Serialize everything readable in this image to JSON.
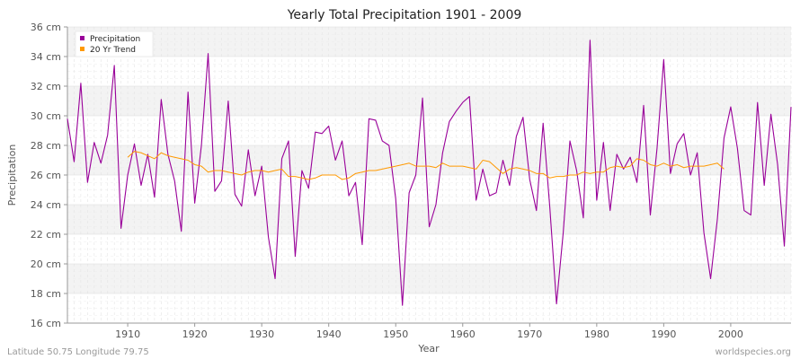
{
  "chart_data": {
    "type": "line",
    "title": "Yearly Total Precipitation 1901 - 2009",
    "xlabel": "Year",
    "ylabel": "Precipitation",
    "xlim": [
      1901,
      2009
    ],
    "ylim": [
      16,
      36
    ],
    "y_unit": "cm",
    "x_ticks": [
      1910,
      1920,
      1930,
      1940,
      1950,
      1960,
      1970,
      1980,
      1990,
      2000
    ],
    "y_ticks": [
      16,
      18,
      20,
      22,
      24,
      26,
      28,
      30,
      32,
      34,
      36
    ],
    "y_tick_labels": [
      "16 cm",
      "18 cm",
      "20 cm",
      "22 cm",
      "24 cm",
      "26 cm",
      "28 cm",
      "30 cm",
      "32 cm",
      "34 cm",
      "36 cm"
    ],
    "grid": true,
    "legend_position": "top-left",
    "series": [
      {
        "name": "Precipitation",
        "color": "#990099",
        "x": [
          1901,
          1902,
          1903,
          1904,
          1905,
          1906,
          1907,
          1908,
          1909,
          1910,
          1911,
          1912,
          1913,
          1914,
          1915,
          1916,
          1917,
          1918,
          1919,
          1920,
          1921,
          1922,
          1923,
          1924,
          1925,
          1926,
          1927,
          1928,
          1929,
          1930,
          1931,
          1932,
          1933,
          1934,
          1935,
          1936,
          1937,
          1938,
          1939,
          1940,
          1941,
          1942,
          1943,
          1944,
          1945,
          1946,
          1947,
          1948,
          1949,
          1950,
          1951,
          1952,
          1953,
          1954,
          1955,
          1956,
          1957,
          1958,
          1959,
          1960,
          1961,
          1962,
          1963,
          1964,
          1965,
          1966,
          1967,
          1968,
          1969,
          1970,
          1971,
          1972,
          1973,
          1974,
          1975,
          1976,
          1977,
          1978,
          1979,
          1980,
          1981,
          1982,
          1983,
          1984,
          1985,
          1986,
          1987,
          1988,
          1989,
          1990,
          1991,
          1992,
          1993,
          1994,
          1995,
          1996,
          1997,
          1998,
          1999,
          2000,
          2001,
          2002,
          2003,
          2004,
          2005,
          2006,
          2007,
          2008,
          2009
        ],
        "values": [
          29.8,
          26.9,
          32.2,
          25.5,
          28.2,
          26.8,
          28.7,
          33.4,
          22.4,
          26.0,
          28.1,
          25.3,
          27.4,
          24.5,
          31.1,
          27.4,
          25.6,
          22.2,
          31.6,
          24.1,
          28.0,
          34.2,
          24.9,
          25.6,
          31.0,
          24.7,
          23.9,
          27.7,
          24.6,
          26.6,
          21.8,
          19.0,
          27.1,
          28.3,
          20.5,
          26.3,
          25.1,
          28.9,
          28.8,
          29.3,
          27.0,
          28.3,
          24.6,
          25.5,
          21.3,
          29.8,
          29.7,
          28.3,
          28.0,
          24.4,
          17.2,
          24.8,
          26.0,
          31.2,
          22.5,
          24.0,
          27.5,
          29.6,
          30.3,
          30.9,
          31.3,
          24.3,
          26.4,
          24.6,
          24.8,
          27.0,
          25.3,
          28.6,
          29.9,
          25.7,
          23.6,
          29.5,
          23.8,
          17.3,
          22.1,
          28.3,
          26.3,
          23.1,
          35.1,
          24.3,
          28.2,
          23.6,
          27.4,
          26.4,
          27.2,
          25.5,
          30.7,
          23.3,
          27.8,
          33.8,
          26.1,
          28.1,
          28.8,
          26.0,
          27.5,
          22.1,
          19.0,
          23.0,
          28.5,
          30.6,
          27.8,
          23.6,
          23.3,
          30.9,
          25.3,
          30.1,
          26.7,
          21.2,
          30.6
        ]
      },
      {
        "name": "20 Yr Trend",
        "color": "#ff9900",
        "x": [
          1910,
          1911,
          1912,
          1913,
          1914,
          1915,
          1916,
          1917,
          1918,
          1919,
          1920,
          1921,
          1922,
          1923,
          1924,
          1925,
          1926,
          1927,
          1928,
          1929,
          1930,
          1931,
          1932,
          1933,
          1934,
          1935,
          1936,
          1937,
          1938,
          1939,
          1940,
          1941,
          1942,
          1943,
          1944,
          1945,
          1946,
          1947,
          1948,
          1949,
          1950,
          1951,
          1952,
          1953,
          1954,
          1955,
          1956,
          1957,
          1958,
          1959,
          1960,
          1961,
          1962,
          1963,
          1964,
          1965,
          1966,
          1967,
          1968,
          1969,
          1970,
          1971,
          1972,
          1973,
          1974,
          1975,
          1976,
          1977,
          1978,
          1979,
          1980,
          1981,
          1982,
          1983,
          1984,
          1985,
          1986,
          1987,
          1988,
          1989,
          1990,
          1991,
          1992,
          1993,
          1994,
          1995,
          1996,
          1997,
          1998,
          1999
        ],
        "values": [
          27.2,
          27.6,
          27.5,
          27.3,
          27.1,
          27.5,
          27.3,
          27.2,
          27.1,
          27.0,
          26.7,
          26.6,
          26.2,
          26.3,
          26.3,
          26.2,
          26.1,
          26.0,
          26.2,
          26.3,
          26.3,
          26.2,
          26.3,
          26.4,
          25.9,
          25.9,
          25.8,
          25.7,
          25.8,
          26.0,
          26.0,
          26.0,
          25.7,
          25.8,
          26.1,
          26.2,
          26.3,
          26.3,
          26.4,
          26.5,
          26.6,
          26.7,
          26.8,
          26.6,
          26.6,
          26.6,
          26.5,
          26.8,
          26.6,
          26.6,
          26.6,
          26.5,
          26.4,
          27.0,
          26.9,
          26.5,
          26.1,
          26.4,
          26.5,
          26.4,
          26.3,
          26.1,
          26.1,
          25.8,
          25.9,
          25.9,
          26.0,
          26.0,
          26.2,
          26.1,
          26.2,
          26.2,
          26.5,
          26.6,
          26.5,
          26.6,
          27.1,
          27.0,
          26.7,
          26.6,
          26.8,
          26.6,
          26.7,
          26.5,
          26.6,
          26.6,
          26.6,
          26.7,
          26.8,
          26.4
        ]
      }
    ]
  },
  "footer": {
    "left": "Latitude 50.75 Longitude 79.75",
    "right": "worldspecies.org"
  }
}
